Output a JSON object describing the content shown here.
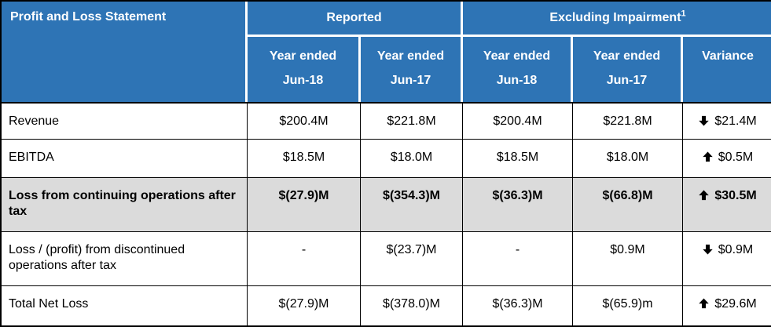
{
  "colors": {
    "header_bg": "#2e74b5",
    "header_text": "#ffffff",
    "highlight_row_bg": "#dbdbdb",
    "grid_border": "#000000",
    "body_text": "#000000"
  },
  "table": {
    "corner_title": "Profit and Loss Statement",
    "group_headers": [
      {
        "label": "Reported",
        "sup": ""
      },
      {
        "label": "Excluding Impairment",
        "sup": "1"
      }
    ],
    "sub_headers": [
      {
        "line1": "Year ended",
        "line2": "Jun-18"
      },
      {
        "line1": "Year ended",
        "line2": "Jun-17"
      },
      {
        "line1": "Year ended",
        "line2": "Jun-18"
      },
      {
        "line1": "Year ended",
        "line2": "Jun-17"
      },
      {
        "line1": "Variance",
        "line2": ""
      }
    ],
    "rows": [
      {
        "label": "Revenue",
        "reported_jun18": "$200.4M",
        "reported_jun17": "$221.8M",
        "excl_jun18": "$200.4M",
        "excl_jun17": "$221.8M",
        "variance": {
          "direction": "down",
          "value": "$21.4M"
        }
      },
      {
        "label": "EBITDA",
        "reported_jun18": "$18.5M",
        "reported_jun17": "$18.0M",
        "excl_jun18": "$18.5M",
        "excl_jun17": "$18.0M",
        "variance": {
          "direction": "up",
          "value": "$0.5M"
        }
      },
      {
        "label": "Loss from continuing operations after tax",
        "reported_jun18": "$(27.9)M",
        "reported_jun17": "$(354.3)M",
        "excl_jun18": "$(36.3)M",
        "excl_jun17": "$(66.8)M",
        "variance": {
          "direction": "up",
          "value": "$30.5M"
        }
      },
      {
        "label": "Loss / (profit) from discontinued operations after tax",
        "reported_jun18": "-",
        "reported_jun17": "$(23.7)M",
        "excl_jun18": "-",
        "excl_jun17": "$0.9M",
        "variance": {
          "direction": "down",
          "value": "$0.9M"
        }
      },
      {
        "label": "Total Net Loss",
        "reported_jun18": "$(27.9)M",
        "reported_jun17": "$(378.0)M",
        "excl_jun18": "$(36.3)M",
        "excl_jun17": "$(65.9)m",
        "variance": {
          "direction": "up",
          "value": "$29.6M"
        }
      }
    ]
  }
}
